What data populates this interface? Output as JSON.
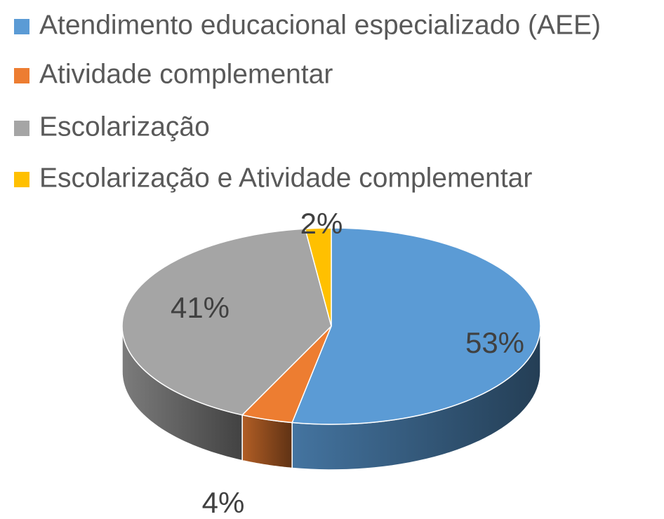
{
  "chart_data": {
    "type": "pie",
    "categories": [
      "Atendimento educacional especializado (AEE)",
      "Atividade complementar",
      "Escolarização",
      "Escolarização e Atividade complementar"
    ],
    "values": [
      53,
      4,
      41,
      2
    ],
    "value_labels": [
      "53%",
      "4%",
      "41%",
      "2%"
    ],
    "colors": [
      "#5b9bd5",
      "#ed7d31",
      "#a5a5a5",
      "#ffc000"
    ],
    "legend": "top"
  }
}
